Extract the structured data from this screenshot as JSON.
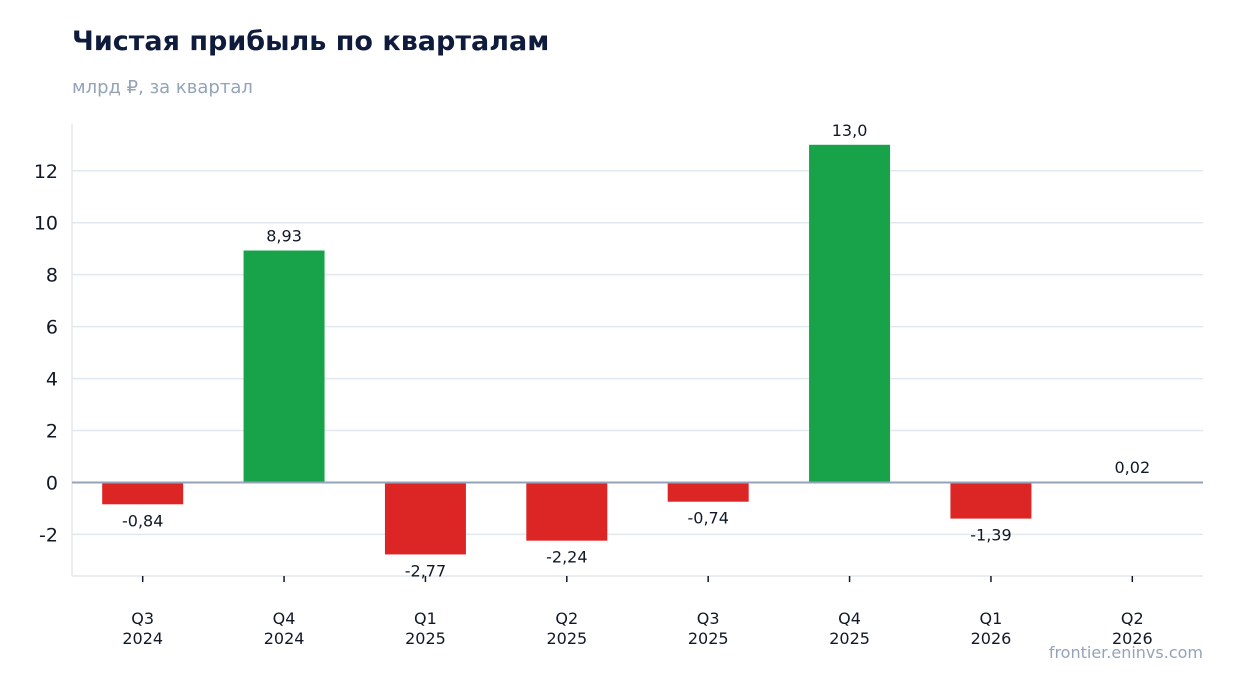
{
  "header": {
    "title": "Чистая прибыль по кварталам",
    "subtitle": "млрд ₽, за квартал"
  },
  "footer": {
    "watermark": "frontier.eninvs.com"
  },
  "colors": {
    "positive": "#18a34a",
    "negative": "#dc2626",
    "grid": "#e2e8f0",
    "zero_line": "#94a3b8"
  },
  "chart_data": {
    "type": "bar",
    "title": "Чистая прибыль по кварталам",
    "subtitle": "млрд ₽, за квартал",
    "xlabel": "",
    "ylabel": "",
    "categories": [
      [
        "Q3",
        "2024"
      ],
      [
        "Q4",
        "2024"
      ],
      [
        "Q1",
        "2025"
      ],
      [
        "Q2",
        "2025"
      ],
      [
        "Q3",
        "2025"
      ],
      [
        "Q4",
        "2025"
      ],
      [
        "Q1",
        "2026"
      ],
      [
        "Q2",
        "2026"
      ]
    ],
    "values": [
      -0.84,
      8.93,
      -2.77,
      -2.24,
      -0.74,
      13.0,
      -1.39,
      0.02
    ],
    "value_labels": [
      "-0,84",
      "8,93",
      "-2,77",
      "-2,24",
      "-0,74",
      "13,0",
      "-1,39",
      "0,02"
    ],
    "ylim": [
      -3.6,
      13.8
    ],
    "yticks": [
      -2,
      0,
      2,
      4,
      6,
      8,
      10,
      12
    ],
    "grid": true,
    "legend": "none"
  }
}
